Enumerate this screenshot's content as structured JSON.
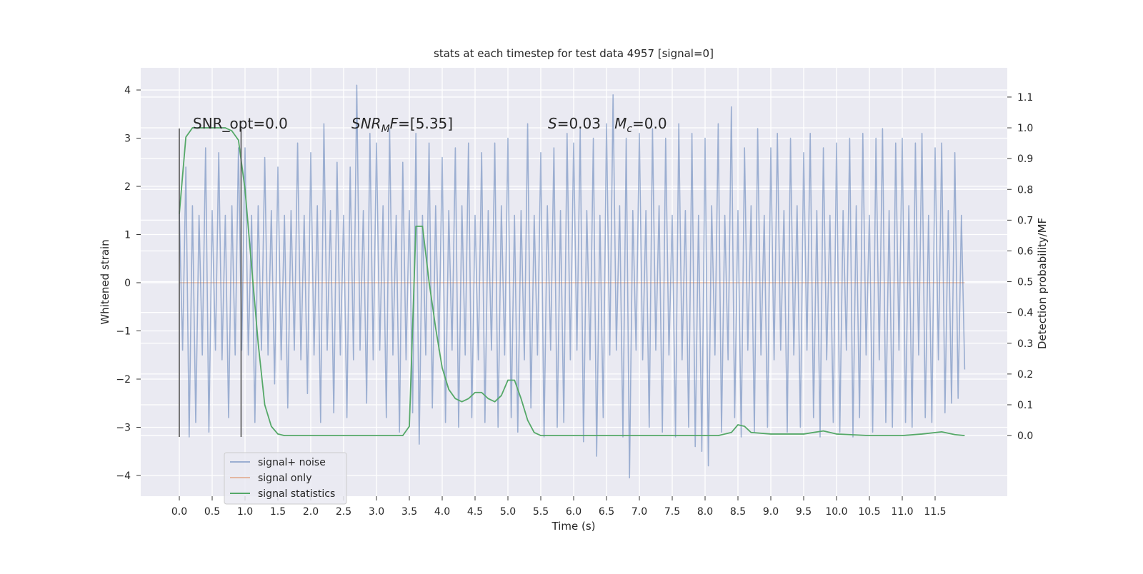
{
  "chart_data": {
    "type": "line",
    "title": "stats at each timestep for test data 4957 [signal=0]",
    "xlabel": "Time (s)",
    "ylabel": "Whitened strain",
    "y2label": "Detection probability/MF",
    "xlim": [
      -0.587,
      12.598
    ],
    "ylim": [
      -4.43,
      4.46
    ],
    "y2lim": [
      -0.197,
      1.195
    ],
    "xticks": [
      {
        "value": 0,
        "label": "0.0"
      },
      0.5,
      {
        "value": 1,
        "label": "1.0"
      },
      1.5,
      {
        "value": 2,
        "label": "2.0"
      },
      2.5,
      {
        "value": 3,
        "label": "3.0"
      },
      3.5,
      {
        "value": 4,
        "label": "4.0"
      },
      4.5,
      {
        "value": 5,
        "label": "5.0"
      },
      5.5,
      {
        "value": 6,
        "label": "6.0"
      },
      6.5,
      {
        "value": 7,
        "label": "7.0"
      },
      7.5,
      {
        "value": 8,
        "label": "8.0"
      },
      8.5,
      {
        "value": 9,
        "label": "9.0"
      },
      9.5,
      {
        "value": 10,
        "label": "10.0"
      },
      10.5,
      {
        "value": 11,
        "label": "11.0"
      },
      11.5
    ],
    "yticks": [
      {
        "value": -4,
        "label": "−4"
      },
      {
        "value": -3,
        "label": "−3"
      },
      {
        "value": -2,
        "label": "−2"
      },
      {
        "value": -1,
        "label": "−1"
      },
      0,
      1,
      2,
      3,
      4
    ],
    "y2ticks": [
      {
        "value": 0,
        "label": "0.0"
      },
      0.1,
      0.2,
      0.3,
      0.4,
      0.5,
      0.6,
      0.7,
      0.8,
      0.9,
      {
        "value": 1,
        "label": "1.0"
      },
      1.1
    ],
    "grid": true,
    "legend_position": "lower left",
    "vline_color": "#555555",
    "vlines": [
      {
        "x": 0,
        "ymin": -3.2,
        "ymax": 3.2
      },
      {
        "x": 0.94,
        "ymin": -3.2,
        "ymax": 3.2
      }
    ],
    "annotations": [
      {
        "parts": [
          {
            "text": "SNR_opt=0.0"
          }
        ]
      },
      {
        "parts": [
          {
            "text": "SNR",
            "italic": true
          },
          {
            "text": "M",
            "italic": true,
            "sub": true
          },
          {
            "text": "F",
            "italic": true
          },
          {
            "text": "=[5.35]"
          }
        ]
      },
      {
        "parts": [
          {
            "text": "S",
            "italic": true
          },
          {
            "text": "=0.03   "
          },
          {
            "text": "M",
            "italic": true
          },
          {
            "text": "c",
            "italic": true,
            "sub": true
          },
          {
            "text": "=0.0"
          }
        ]
      }
    ],
    "series": [
      {
        "name": "signal+ noise",
        "color": "#4c72b0",
        "alpha": 0.5,
        "x": [
          0,
          0.05,
          0.1,
          0.15,
          0.2,
          0.25,
          0.3,
          0.35,
          0.4,
          0.45,
          0.5,
          0.55,
          0.6,
          0.65,
          0.7,
          0.75,
          0.8,
          0.85,
          0.9,
          0.95,
          1,
          1.05,
          1.1,
          1.15,
          1.2,
          1.25,
          1.3,
          1.35,
          1.4,
          1.45,
          1.5,
          1.55,
          1.6,
          1.65,
          1.7,
          1.75,
          1.8,
          1.85,
          1.9,
          1.95,
          2,
          2.05,
          2.1,
          2.15,
          2.2,
          2.25,
          2.3,
          2.35,
          2.4,
          2.45,
          2.5,
          2.55,
          2.6,
          2.65,
          2.7,
          2.75,
          2.8,
          2.85,
          2.9,
          2.95,
          3,
          3.05,
          3.1,
          3.15,
          3.2,
          3.25,
          3.3,
          3.35,
          3.4,
          3.45,
          3.5,
          3.55,
          3.6,
          3.65,
          3.7,
          3.75,
          3.8,
          3.85,
          3.9,
          3.95,
          4,
          4.05,
          4.1,
          4.15,
          4.2,
          4.25,
          4.3,
          4.35,
          4.4,
          4.45,
          4.5,
          4.55,
          4.6,
          4.65,
          4.7,
          4.75,
          4.8,
          4.85,
          4.9,
          4.95,
          5,
          5.05,
          5.1,
          5.15,
          5.2,
          5.25,
          5.3,
          5.35,
          5.4,
          5.45,
          5.5,
          5.55,
          5.6,
          5.65,
          5.7,
          5.75,
          5.8,
          5.85,
          5.9,
          5.95,
          6,
          6.05,
          6.1,
          6.15,
          6.2,
          6.25,
          6.3,
          6.35,
          6.4,
          6.45,
          6.5,
          6.55,
          6.6,
          6.65,
          6.7,
          6.75,
          6.8,
          6.85,
          6.9,
          6.95,
          7,
          7.05,
          7.1,
          7.15,
          7.2,
          7.25,
          7.3,
          7.35,
          7.4,
          7.45,
          7.5,
          7.55,
          7.6,
          7.65,
          7.7,
          7.75,
          7.8,
          7.85,
          7.9,
          7.95,
          8,
          8.05,
          8.1,
          8.15,
          8.2,
          8.25,
          8.3,
          8.35,
          8.4,
          8.45,
          8.5,
          8.55,
          8.6,
          8.65,
          8.7,
          8.75,
          8.8,
          8.85,
          8.9,
          8.95,
          9,
          9.05,
          9.1,
          9.15,
          9.2,
          9.25,
          9.3,
          9.35,
          9.4,
          9.45,
          9.5,
          9.55,
          9.6,
          9.65,
          9.7,
          9.75,
          9.8,
          9.85,
          9.9,
          9.95,
          10,
          10.05,
          10.1,
          10.15,
          10.2,
          10.25,
          10.3,
          10.35,
          10.4,
          10.45,
          10.5,
          10.55,
          10.6,
          10.65,
          10.7,
          10.75,
          10.8,
          10.85,
          10.9,
          10.95,
          11,
          11.05,
          11.1,
          11.15,
          11.2,
          11.25,
          11.3,
          11.35,
          11.4,
          11.45,
          11.5,
          11.55,
          11.6,
          11.65,
          11.7,
          11.75,
          11.8,
          11.85,
          11.9,
          11.95
        ],
        "values": [
          1.5,
          -1.4,
          2.4,
          -3.2,
          1.6,
          -2.9,
          1.4,
          -1.5,
          2.8,
          -3.1,
          1.5,
          -1.4,
          2.7,
          -1.6,
          1.4,
          -2.8,
          1.6,
          -1.5,
          2.8,
          -1.4,
          2.8,
          -1.5,
          1.4,
          -2.9,
          1.6,
          -1.4,
          2.6,
          -1.5,
          1.5,
          -2.1,
          2.4,
          -1.6,
          1.4,
          -2.6,
          1.5,
          -1.4,
          2.9,
          -1.6,
          1.4,
          -2.3,
          2.7,
          -1.5,
          1.6,
          -2.9,
          3.3,
          -1.4,
          1.5,
          -2.7,
          2.5,
          -1.5,
          1.4,
          -2.8,
          2.4,
          -1.6,
          4.1,
          -1.4,
          1.5,
          -2.5,
          3.1,
          -1.6,
          2.9,
          -1.4,
          1.6,
          -2.8,
          3.2,
          -1.5,
          1.4,
          -3.1,
          2.5,
          -1.6,
          1.5,
          -2.7,
          3.1,
          -3.35,
          1.4,
          -1.5,
          2.9,
          -2.6,
          1.6,
          -1.4,
          2.6,
          -2.9,
          1.5,
          -1.4,
          2.8,
          -3.0,
          1.6,
          -1.5,
          2.9,
          -2.8,
          1.4,
          -1.6,
          2.7,
          -2.9,
          1.5,
          -1.4,
          2.9,
          -3.0,
          1.6,
          -1.5,
          3.0,
          -2.8,
          1.4,
          -3.1,
          1.5,
          -1.6,
          3.3,
          -2.6,
          1.4,
          -1.5,
          2.7,
          -3.2,
          1.6,
          -1.4,
          2.8,
          -3.0,
          1.5,
          -2.9,
          3.1,
          -1.6,
          2.9,
          -1.4,
          3.2,
          -3.3,
          1.5,
          -1.6,
          3.0,
          -3.6,
          1.4,
          -2.8,
          3.3,
          -1.5,
          3.9,
          -1.4,
          1.6,
          -3.2,
          3.0,
          -4.05,
          1.5,
          -1.4,
          3.1,
          -1.6,
          1.5,
          -3.0,
          3.2,
          -1.4,
          1.6,
          -3.1,
          3.0,
          -1.5,
          1.4,
          -3.2,
          3.3,
          -1.6,
          1.5,
          -3.0,
          3.1,
          -3.4,
          1.4,
          -3.5,
          3.0,
          -3.8,
          1.6,
          -1.5,
          3.3,
          -3.1,
          1.4,
          -1.6,
          3.65,
          -2.8,
          1.5,
          -3.2,
          2.8,
          -1.4,
          1.6,
          -3.1,
          3.2,
          -1.5,
          1.4,
          -3.0,
          2.8,
          -1.6,
          3.1,
          -1.4,
          1.5,
          -3.1,
          3.0,
          -1.5,
          1.6,
          -3.0,
          2.7,
          -1.4,
          3.1,
          -2.8,
          1.5,
          -3.2,
          2.8,
          -1.6,
          1.4,
          -2.9,
          2.9,
          -3.1,
          1.5,
          -1.4,
          3.0,
          -3.2,
          1.6,
          -2.8,
          3.1,
          -1.5,
          1.4,
          -3.1,
          3.0,
          -1.6,
          3.2,
          -2.9,
          1.5,
          -3.0,
          2.9,
          -1.4,
          3.0,
          -2.9,
          1.6,
          -3.0,
          2.9,
          -1.5,
          3.1,
          -2.8,
          1.4,
          -2.9,
          2.8,
          -1.6,
          2.9,
          -2.7,
          1.5,
          -2.5,
          2.7,
          -2.4,
          1.4,
          -1.8
        ]
      },
      {
        "name": "signal only",
        "color": "#dd8452",
        "alpha": 0.5,
        "x": [
          0,
          11.95
        ],
        "values": [
          0,
          0
        ]
      },
      {
        "name": "signal statistics",
        "color": "#55a868",
        "alpha": 1,
        "axis": "y2",
        "x": [
          0,
          0.1,
          0.2,
          0.5,
          0.7,
          0.8,
          0.9,
          1.0,
          1.1,
          1.2,
          1.3,
          1.4,
          1.5,
          1.6,
          3.0,
          3.4,
          3.5,
          3.6,
          3.7,
          3.8,
          3.9,
          4.0,
          4.1,
          4.2,
          4.3,
          4.4,
          4.5,
          4.6,
          4.7,
          4.8,
          4.9,
          5.0,
          5.1,
          5.2,
          5.3,
          5.4,
          5.5,
          6.5,
          8.2,
          8.4,
          8.5,
          8.6,
          8.7,
          9.0,
          9.5,
          9.8,
          10.0,
          10.5,
          11.0,
          11.3,
          11.6,
          11.8,
          11.95
        ],
        "values": [
          0.72,
          0.97,
          1.0,
          1.0,
          1.0,
          0.99,
          0.96,
          0.8,
          0.55,
          0.3,
          0.1,
          0.03,
          0.005,
          0.0,
          0.0,
          0.0,
          0.03,
          0.68,
          0.68,
          0.5,
          0.35,
          0.22,
          0.15,
          0.12,
          0.11,
          0.12,
          0.14,
          0.14,
          0.12,
          0.11,
          0.13,
          0.18,
          0.18,
          0.12,
          0.05,
          0.01,
          0.0,
          0.0,
          0.0,
          0.01,
          0.035,
          0.03,
          0.01,
          0.005,
          0.005,
          0.015,
          0.005,
          0.0,
          0.0,
          0.005,
          0.012,
          0.003,
          0.0
        ]
      }
    ]
  }
}
